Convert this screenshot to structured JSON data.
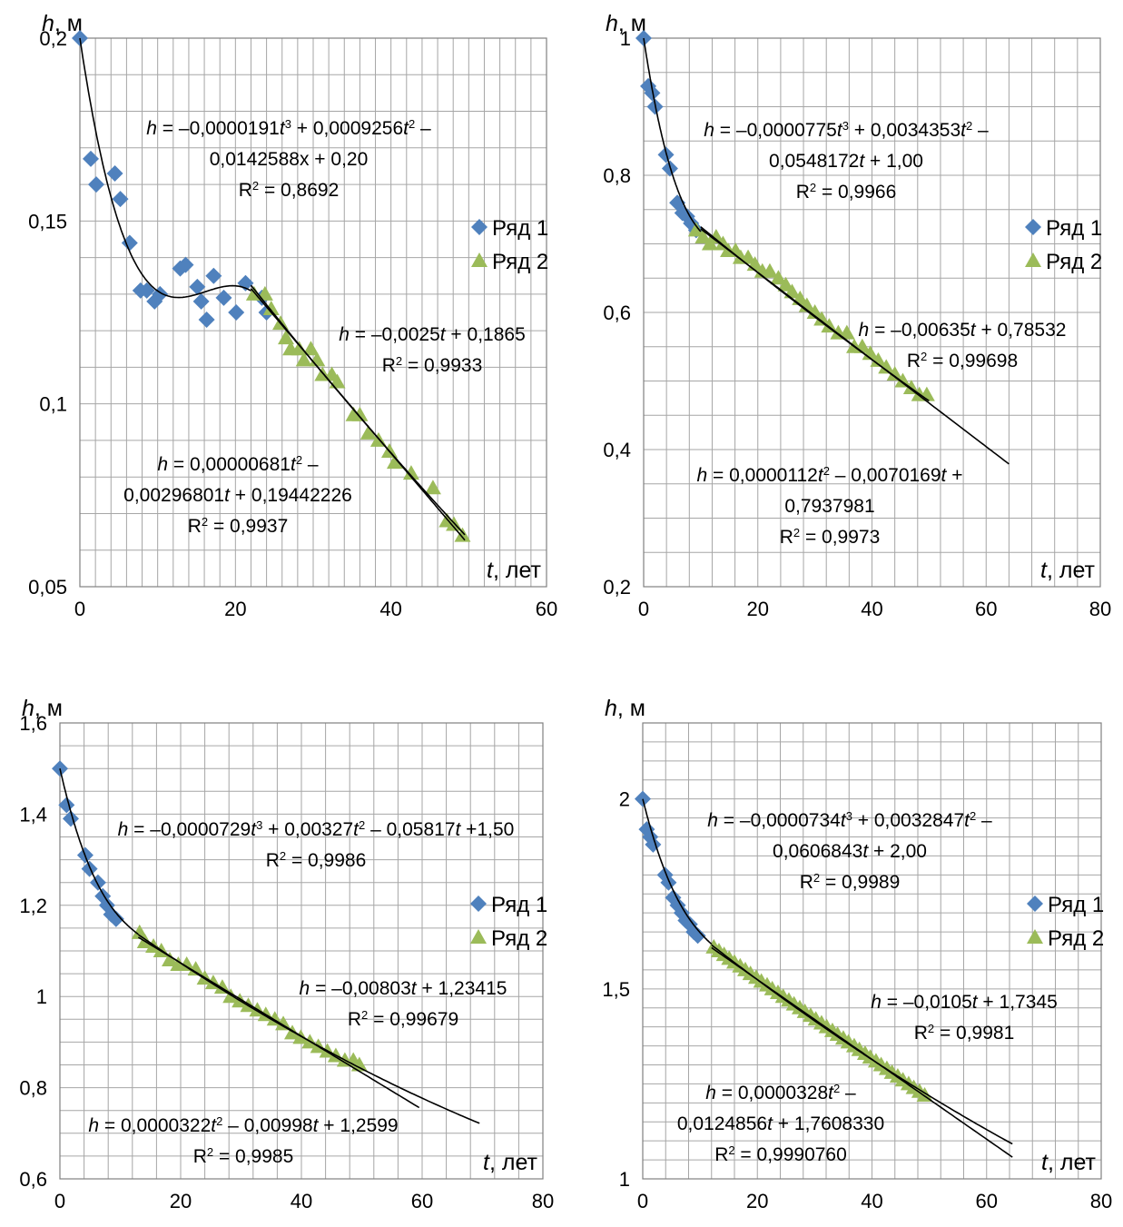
{
  "colors": {
    "series1": "#4f81bd",
    "series2": "#9bbb59",
    "grid": "#a6a6a6",
    "trend": "#000000"
  },
  "chart_data": [
    {
      "type": "scatter",
      "ylabel_italic": "h",
      "ylabel_unit": ", м",
      "xlabel_italic": "t",
      "xlabel_unit": ", лет",
      "xlim": [
        0,
        60
      ],
      "ylim": [
        0.05,
        0.2
      ],
      "xticks": [
        0,
        20,
        40,
        60
      ],
      "xtick_labels": [
        "0",
        "20",
        "40",
        "60"
      ],
      "yticks": [
        0.05,
        0.1,
        0.15,
        0.2
      ],
      "ytick_labels": [
        "0,05",
        "0,1",
        "0,15",
        "0,2"
      ],
      "legend": [
        "Ряд 1",
        "Ряд 2"
      ],
      "series": [
        {
          "name": "Ряд 1",
          "marker": "diamond",
          "x": [
            0,
            1.4,
            2.1,
            4.5,
            5.2,
            6.4,
            7.8,
            8.6,
            9.6,
            10.3,
            12.9,
            13.6,
            15.1,
            15.6,
            16.3,
            17.2,
            18.5,
            20.1,
            21.3,
            23.4,
            24.0
          ],
          "y": [
            0.2,
            0.167,
            0.16,
            0.163,
            0.156,
            0.144,
            0.131,
            0.131,
            0.128,
            0.13,
            0.137,
            0.138,
            0.132,
            0.128,
            0.123,
            0.135,
            0.129,
            0.125,
            0.133,
            0.129,
            0.125
          ]
        },
        {
          "name": "Ряд 2",
          "marker": "triangle",
          "x": [
            22.4,
            23.8,
            24.6,
            25.8,
            26.5,
            27.1,
            28.2,
            28.8,
            29.7,
            30.5,
            31.2,
            32.4,
            33.1,
            35.2,
            36.0,
            37.1,
            38.4,
            39.8,
            40.5,
            42.6,
            45.4,
            47.2,
            48.1,
            49.2
          ],
          "y": [
            0.13,
            0.13,
            0.126,
            0.122,
            0.118,
            0.115,
            0.115,
            0.112,
            0.115,
            0.112,
            0.108,
            0.108,
            0.106,
            0.097,
            0.097,
            0.092,
            0.09,
            0.087,
            0.084,
            0.081,
            0.077,
            0.068,
            0.067,
            0.064
          ]
        }
      ],
      "trendlines": [
        {
          "kind": "poly",
          "coef": [
            0.2,
            -0.0142588,
            0.0009256,
            -1.91e-05
          ],
          "x0": 0,
          "x1": 22
        },
        {
          "kind": "poly",
          "coef": [
            0.1865,
            -0.0025
          ],
          "x0": 22,
          "x1": 49.5
        },
        {
          "kind": "poly",
          "coef": [
            0.19442226,
            -0.00296801,
            6.81e-06
          ],
          "x0": 22,
          "x1": 49.5
        }
      ],
      "annotations": [
        [
          "h = –0,0000191t³ + 0,0009256t² –",
          "0,0142588x + 0,20",
          "R² = 0,8692"
        ],
        [
          "h = –0,0025t + 0,1865",
          "R² = 0,9933"
        ],
        [
          "h = 0,00000681t² –",
          "0,00296801t + 0,19442226",
          "R² = 0,9937"
        ]
      ]
    },
    {
      "type": "scatter",
      "ylabel_italic": "h",
      "ylabel_unit": ", м",
      "xlabel_italic": "t",
      "xlabel_unit": ", лет",
      "xlim": [
        0,
        80
      ],
      "ylim": [
        0.2,
        1.0
      ],
      "xticks": [
        0,
        20,
        40,
        60,
        80
      ],
      "xtick_labels": [
        "0",
        "20",
        "40",
        "60",
        "80"
      ],
      "yticks": [
        0.2,
        0.4,
        0.6,
        0.8,
        1.0
      ],
      "ytick_labels": [
        "0,2",
        "0,4",
        "0,6",
        "0,8",
        "1"
      ],
      "legend": [
        "Ряд 1",
        "Ряд 2"
      ],
      "series": [
        {
          "name": "Ряд 1",
          "marker": "diamond",
          "x": [
            0,
            0.8,
            1.5,
            2.0,
            3.9,
            4.6,
            5.9,
            6.8,
            7.6,
            8.3,
            9.2
          ],
          "y": [
            1.0,
            0.93,
            0.92,
            0.9,
            0.83,
            0.81,
            0.76,
            0.745,
            0.74,
            0.73,
            0.72
          ]
        },
        {
          "name": "Ряд 2",
          "marker": "triangle",
          "x": [
            9.2,
            10.4,
            11.6,
            12.7,
            13.9,
            14.8,
            16.1,
            17.0,
            18.3,
            19.5,
            20.8,
            22.1,
            23.6,
            24.9,
            26.0,
            27.4,
            28.6,
            30.0,
            31.2,
            32.5,
            34.1,
            35.6,
            36.9,
            38.3,
            39.7,
            41.1,
            42.5,
            44.0,
            45.4,
            46.9,
            48.3,
            49.6
          ],
          "y": [
            0.72,
            0.71,
            0.7,
            0.71,
            0.7,
            0.69,
            0.69,
            0.68,
            0.68,
            0.67,
            0.66,
            0.66,
            0.65,
            0.64,
            0.63,
            0.62,
            0.61,
            0.6,
            0.59,
            0.58,
            0.57,
            0.57,
            0.55,
            0.55,
            0.54,
            0.53,
            0.52,
            0.51,
            0.5,
            0.49,
            0.48,
            0.48
          ]
        }
      ],
      "trendlines": [
        {
          "kind": "poly",
          "coef": [
            1.0,
            -0.0548172,
            0.0034353,
            -7.75e-05
          ],
          "x0": 0,
          "x1": 10
        },
        {
          "kind": "poly",
          "coef": [
            0.78532,
            -0.00635
          ],
          "x0": 10,
          "x1": 64
        },
        {
          "kind": "poly",
          "coef": [
            0.7937981,
            -0.0070169,
            1.12e-05
          ],
          "x0": 10,
          "x1": 50
        }
      ],
      "annotations": [
        [
          "h = –0,0000775t³ + 0,0034353t² –",
          "0,0548172t + 1,00",
          "R² = 0,9966"
        ],
        [
          "h = –0,00635t + 0,78532",
          "R² = 0,99698"
        ],
        [
          "h = 0,0000112t² – 0,0070169t +",
          "0,7937981",
          "R² = 0,9973"
        ]
      ]
    },
    {
      "type": "scatter",
      "ylabel_italic": "h",
      "ylabel_unit": ", м",
      "xlabel_italic": "t",
      "xlabel_unit": ", лет",
      "xlim": [
        0,
        80
      ],
      "ylim": [
        0.6,
        1.6
      ],
      "xticks": [
        0,
        20,
        40,
        60,
        80
      ],
      "xtick_labels": [
        "0",
        "20",
        "40",
        "60",
        "80"
      ],
      "yticks": [
        0.6,
        0.8,
        1.0,
        1.2,
        1.4,
        1.6
      ],
      "ytick_labels": [
        "0,6",
        "0,8",
        "1",
        "1,2",
        "1,4",
        "1,6"
      ],
      "legend": [
        "Ряд 1",
        "Ряд 2"
      ],
      "series": [
        {
          "name": "Ряд 1",
          "marker": "diamond",
          "x": [
            0,
            1.1,
            1.8,
            4.2,
            4.9,
            6.3,
            7.1,
            7.8,
            8.5,
            9.3
          ],
          "y": [
            1.5,
            1.42,
            1.39,
            1.31,
            1.28,
            1.25,
            1.22,
            1.2,
            1.18,
            1.17
          ]
        },
        {
          "name": "Ряд 2",
          "marker": "triangle",
          "x": [
            13.2,
            14.1,
            15.5,
            16.8,
            18.2,
            19.6,
            21.0,
            22.5,
            24.0,
            25.4,
            26.9,
            28.3,
            29.8,
            31.2,
            32.7,
            34.1,
            35.6,
            37.0,
            38.5,
            39.9,
            41.4,
            42.8,
            44.3,
            45.7,
            47.2,
            48.6,
            49.6
          ],
          "y": [
            1.14,
            1.12,
            1.11,
            1.1,
            1.08,
            1.07,
            1.07,
            1.06,
            1.04,
            1.03,
            1.02,
            1.0,
            0.99,
            0.98,
            0.97,
            0.96,
            0.95,
            0.94,
            0.92,
            0.91,
            0.9,
            0.89,
            0.88,
            0.87,
            0.86,
            0.86,
            0.85
          ]
        }
      ],
      "trendlines": [
        {
          "kind": "poly",
          "coef": [
            1.5,
            -0.05817,
            0.00327,
            -7.29e-05
          ],
          "x0": 0,
          "x1": 13
        },
        {
          "kind": "poly",
          "coef": [
            1.23415,
            -0.00803
          ],
          "x0": 13,
          "x1": 59.5
        },
        {
          "kind": "poly",
          "coef": [
            1.2599,
            -0.00998,
            3.22e-05
          ],
          "x0": 13,
          "x1": 69.5
        }
      ],
      "annotations": [
        [
          "h = –0,0000729t³ + 0,00327t² – 0,05817t +1,50",
          "R² = 0,9986"
        ],
        [
          "h = –0,00803t + 1,23415",
          "R² = 0,99679"
        ],
        [
          "h = 0,0000322t² – 0,00998t + 1,2599",
          "R² = 0,9985"
        ]
      ]
    },
    {
      "type": "scatter",
      "ylabel_italic": "h",
      "ylabel_unit": ", м",
      "xlabel_italic": "t",
      "xlabel_unit": ", лет",
      "xlim": [
        0,
        80
      ],
      "ylim": [
        1.0,
        2.2
      ],
      "xticks": [
        0,
        20,
        40,
        60,
        80
      ],
      "xtick_labels": [
        "0",
        "20",
        "40",
        "60",
        "80"
      ],
      "yticks": [
        1.0,
        1.5,
        2.0
      ],
      "ytick_labels": [
        "1",
        "1,5",
        "2"
      ],
      "legend": [
        "Ряд 1",
        "Ряд 2"
      ],
      "series": [
        {
          "name": "Ряд 1",
          "marker": "diamond",
          "x": [
            0,
            0.7,
            1.3,
            1.8,
            3.9,
            4.5,
            5.3,
            6.1,
            6.8,
            7.5,
            8.2,
            8.9,
            9.6
          ],
          "y": [
            2.0,
            1.92,
            1.9,
            1.88,
            1.8,
            1.78,
            1.74,
            1.72,
            1.7,
            1.68,
            1.67,
            1.65,
            1.64
          ]
        },
        {
          "name": "Ряд 2",
          "marker": "triangle",
          "x": [
            12.4,
            13.3,
            14.2,
            15.1,
            16.0,
            17.0,
            17.9,
            18.8,
            19.8,
            20.7,
            21.7,
            22.6,
            23.6,
            24.5,
            25.5,
            26.4,
            27.4,
            28.3,
            29.3,
            30.2,
            31.2,
            32.1,
            33.1,
            34.0,
            35.0,
            35.9,
            36.9,
            37.8,
            38.8,
            39.7,
            40.7,
            41.6,
            42.6,
            43.5,
            44.5,
            45.4,
            46.4,
            47.3,
            48.3,
            49.2
          ],
          "y": [
            1.61,
            1.6,
            1.59,
            1.58,
            1.57,
            1.56,
            1.55,
            1.54,
            1.53,
            1.52,
            1.51,
            1.5,
            1.49,
            1.48,
            1.47,
            1.46,
            1.45,
            1.44,
            1.43,
            1.42,
            1.41,
            1.4,
            1.39,
            1.38,
            1.37,
            1.36,
            1.35,
            1.34,
            1.33,
            1.32,
            1.31,
            1.3,
            1.29,
            1.28,
            1.27,
            1.26,
            1.25,
            1.24,
            1.23,
            1.22
          ]
        }
      ],
      "trendlines": [
        {
          "kind": "poly",
          "coef": [
            2.0,
            -0.0606843,
            0.0032847,
            -7.34e-05
          ],
          "x0": 0,
          "x1": 12
        },
        {
          "kind": "poly",
          "coef": [
            1.7345,
            -0.0105
          ],
          "x0": 12,
          "x1": 64.5
        },
        {
          "kind": "poly",
          "coef": [
            1.760833,
            -0.0124856,
            3.28e-05
          ],
          "x0": 12,
          "x1": 64.5
        }
      ],
      "annotations": [
        [
          "h = –0,0000734t³ + 0,0032847t² –",
          "0,0606843t + 2,00",
          "R² = 0,9989"
        ],
        [
          "h = –0,0105t + 1,7345",
          "R² = 0,9981"
        ],
        [
          "h = 0,0000328t² –",
          "0,0124856t + 1,7608330",
          "R² = 0,9990760"
        ]
      ]
    }
  ]
}
